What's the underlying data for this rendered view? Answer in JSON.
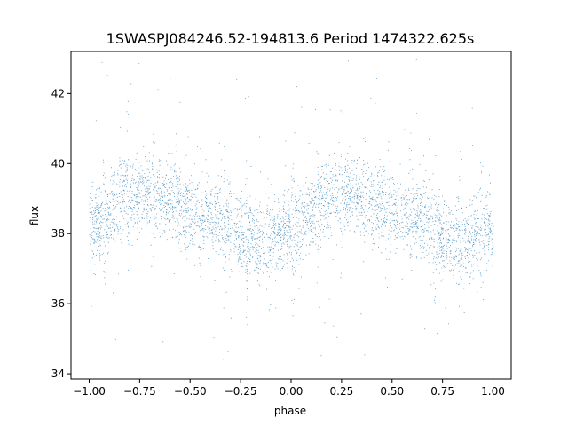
{
  "chart_data": {
    "type": "scatter",
    "title": "1SWASPJ084246.52-194813.6 Period 1474322.625s",
    "xlabel": "phase",
    "ylabel": "flux",
    "xlim": [
      -1.09,
      1.09
    ],
    "ylim": [
      33.85,
      43.2
    ],
    "xticks": [
      -1.0,
      -0.75,
      -0.5,
      -0.25,
      0.0,
      0.25,
      0.5,
      0.75,
      1.0
    ],
    "xtick_labels": [
      "−1.00",
      "−0.75",
      "−0.50",
      "−0.25",
      "0.00",
      "0.25",
      "0.50",
      "0.75",
      "1.00"
    ],
    "yticks": [
      34,
      36,
      38,
      40,
      42
    ],
    "ytick_labels": [
      "34",
      "36",
      "38",
      "40",
      "42"
    ],
    "grid": false,
    "marker_color": "#1f77b4",
    "series": [
      {
        "note_free": true,
        "phase_profile": {
          "phase": [
            0.0,
            0.05,
            0.1,
            0.15,
            0.2,
            0.25,
            0.3,
            0.35,
            0.4,
            0.45,
            0.5,
            0.55,
            0.6,
            0.65,
            0.7,
            0.75,
            0.8,
            0.85,
            0.9,
            0.95,
            1.0
          ],
          "median_flux": [
            38.2,
            38.3,
            38.6,
            39.0,
            39.1,
            39.1,
            39.2,
            39.0,
            38.9,
            38.8,
            38.7,
            38.6,
            38.5,
            38.4,
            38.2,
            38.0,
            37.8,
            37.7,
            37.9,
            38.1,
            38.2
          ]
        },
        "x_range": [
          -1.0,
          1.0
        ],
        "typical_spread": 1.2,
        "outlier_range": [
          34.4,
          43.0
        ]
      }
    ]
  }
}
